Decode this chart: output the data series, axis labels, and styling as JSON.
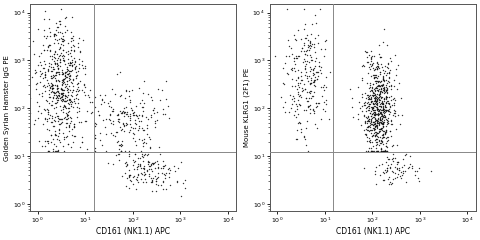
{
  "left_ylabel": "Golden Syrian Hamster IgG PE",
  "right_ylabel": "Mouse KLRG1 (2F1) PE",
  "xlabel": "CD161 (NK1.1) APC",
  "xlim_log": [
    0.7,
    15000
  ],
  "ylim_log": [
    0.7,
    15000
  ],
  "xtick_vals": [
    1,
    10,
    100,
    1000,
    10000
  ],
  "xtick_labels": [
    "10$^0$",
    "10$^1$",
    "10$^2$",
    "10$^3$",
    "10$^4$"
  ],
  "ytick_vals": [
    1,
    10,
    100,
    1000,
    10000
  ],
  "ytick_labels": [
    "10$^0$",
    "10$^1$",
    "10$^2$",
    "10$^3$",
    "10$^4$"
  ],
  "xline": 15,
  "yline": 12,
  "background_color": "#ffffff",
  "dot_color": "#111111",
  "contour_color": "#aaaaaa",
  "dot_size": 1.0,
  "dot_alpha": 0.85
}
